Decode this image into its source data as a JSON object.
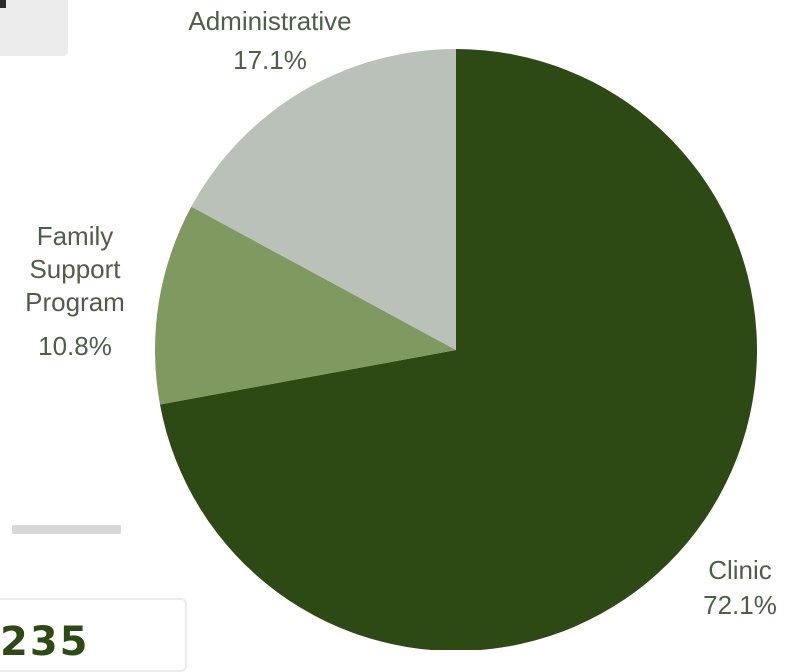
{
  "background_panel": {
    "partial_digits": "235"
  },
  "chart_data": {
    "type": "pie",
    "start_angle_deg": 0,
    "direction": "clockwise",
    "slices": [
      {
        "label": "Clinic",
        "value": 72.1,
        "value_label": "72.1%",
        "color": "#2d4a14"
      },
      {
        "label": "Family Support Program",
        "label_lines": [
          "Family",
          "Support",
          "Program"
        ],
        "value": 10.8,
        "value_label": "10.8%",
        "color": "#7f9960"
      },
      {
        "label": "Administrative",
        "value": 17.1,
        "value_label": "17.1%",
        "color": "#bac1b8"
      }
    ]
  }
}
